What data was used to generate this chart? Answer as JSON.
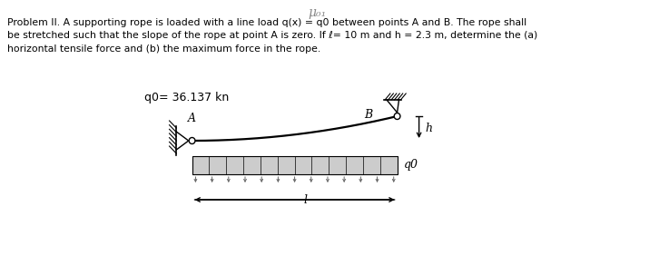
{
  "title": "μ₀₁",
  "problem_text": "Problem II. A supporting rope is loaded with a line load q(x) = q0 between points A and B. The rope shall\nbe stretched such that the slope of the rope at point A is zero. If ℓ= 10 m and h = 2.3 m, determine the (a)\nhorizontal tensile force and (b) the maximum force in the rope.",
  "q0_label": "q0= 36.137 kn",
  "A_label": "A",
  "B_label": "B",
  "h_label": "h",
  "l_label": "l",
  "q0_side_label": "q0",
  "rope_color": "#000000",
  "load_bg": "#cccccc",
  "arrow_color": "#666666",
  "text_color": "#000000",
  "title_color": "#888888"
}
